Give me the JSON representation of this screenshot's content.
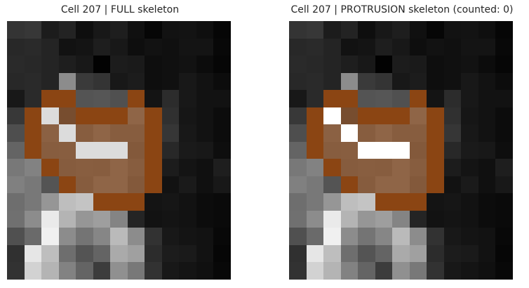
{
  "figure": {
    "panels": [
      {
        "title": "Cell 207 | FULL skeleton",
        "overlay": "full",
        "highlight_color": "#dcdcdc"
      },
      {
        "title": "Cell 207 | PROTRUSION skeleton (counted: 0)",
        "overlay": "protrusion",
        "highlight_color": "#ffffff"
      }
    ],
    "grid": {
      "rows": 15,
      "cols": 13,
      "gray": [
        [
          52,
          55,
          28,
          35,
          14,
          24,
          30,
          16,
          6,
          18,
          19,
          15,
          6
        ],
        [
          40,
          42,
          36,
          18,
          20,
          30,
          24,
          14,
          18,
          16,
          20,
          20,
          8
        ],
        [
          42,
          40,
          36,
          30,
          24,
          2,
          28,
          26,
          14,
          16,
          18,
          12,
          6
        ],
        [
          40,
          42,
          36,
          140,
          58,
          52,
          24,
          28,
          14,
          16,
          24,
          18,
          12
        ],
        [
          24,
          42,
          30,
          40,
          84,
          86,
          80,
          34,
          20,
          44,
          24,
          18,
          18
        ],
        [
          56,
          60,
          36,
          90,
          130,
          140,
          160,
          150,
          30,
          48,
          22,
          18,
          12
        ],
        [
          78,
          48,
          140,
          60,
          130,
          150,
          130,
          130,
          40,
          54,
          24,
          18,
          12
        ],
        [
          100,
          72,
          130,
          132,
          140,
          150,
          130,
          120,
          30,
          40,
          26,
          24,
          14
        ],
        [
          120,
          130,
          90,
          126,
          132,
          130,
          150,
          130,
          38,
          28,
          20,
          16,
          30
        ],
        [
          128,
          120,
          84,
          120,
          126,
          150,
          148,
          120,
          60,
          18,
          26,
          16,
          24
        ],
        [
          110,
          120,
          150,
          190,
          196,
          184,
          100,
          40,
          20,
          22,
          18,
          12,
          10
        ],
        [
          112,
          140,
          234,
          180,
          150,
          158,
          132,
          36,
          18,
          20,
          18,
          12,
          10
        ],
        [
          80,
          106,
          240,
          140,
          116,
          134,
          186,
          140,
          50,
          24,
          20,
          18,
          8
        ],
        [
          48,
          230,
          190,
          110,
          84,
          100,
          170,
          160,
          44,
          28,
          26,
          18,
          6
        ],
        [
          50,
          210,
          180,
          130,
          100,
          60,
          144,
          120,
          50,
          24,
          20,
          16,
          8
        ]
      ],
      "overlay_brown": [
        [
          4,
          2
        ],
        [
          4,
          3
        ],
        [
          4,
          7
        ],
        [
          5,
          1
        ],
        [
          5,
          4
        ],
        [
          5,
          5
        ],
        [
          5,
          6
        ],
        [
          5,
          8
        ],
        [
          6,
          1
        ],
        [
          6,
          8
        ],
        [
          7,
          1
        ],
        [
          7,
          8
        ],
        [
          8,
          2
        ],
        [
          8,
          8
        ],
        [
          9,
          3
        ],
        [
          9,
          8
        ],
        [
          10,
          5
        ],
        [
          10,
          6
        ],
        [
          10,
          7
        ]
      ],
      "overlay_tan": [
        [
          5,
          3
        ],
        [
          5,
          7
        ],
        [
          6,
          2
        ],
        [
          6,
          4
        ],
        [
          6,
          5
        ],
        [
          6,
          6
        ],
        [
          6,
          7
        ],
        [
          7,
          2
        ],
        [
          7,
          3
        ],
        [
          7,
          7
        ],
        [
          8,
          3
        ],
        [
          8,
          4
        ],
        [
          8,
          5
        ],
        [
          8,
          6
        ],
        [
          8,
          7
        ],
        [
          9,
          4
        ],
        [
          9,
          5
        ],
        [
          9,
          6
        ],
        [
          9,
          7
        ]
      ],
      "overlay_highlight": [
        [
          5,
          2
        ],
        [
          6,
          3
        ],
        [
          7,
          4
        ],
        [
          7,
          5
        ],
        [
          7,
          6
        ]
      ],
      "colors": {
        "brown": "#8b4513",
        "tan_mix": "#8b4513"
      }
    }
  }
}
